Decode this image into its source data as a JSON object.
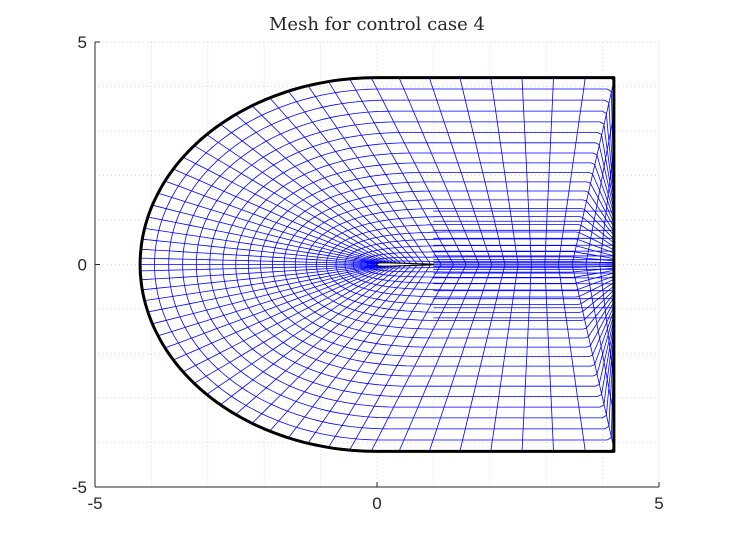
{
  "chart_data": {
    "type": "mesh",
    "title": "Mesh for control case 4",
    "xlabel": "",
    "ylabel": "",
    "xlim": [
      -5,
      5
    ],
    "ylim": [
      -5,
      5
    ],
    "xticks": [
      "-5",
      "0",
      "5"
    ],
    "yticks": [
      "-5",
      "0",
      "5"
    ],
    "grid": true,
    "grid_minor_step": 1,
    "boundary": {
      "semi_ellipse_a": 4.2,
      "semi_ellipse_b": 4.2,
      "center_x": 0,
      "right_edge_x": 4.2,
      "top_y": 4.2,
      "bottom_y": -4.2
    },
    "airfoil": {
      "x_start": 0,
      "x_end": 1
    },
    "mesh_color": "#0000ff",
    "boundary_color": "#000000"
  }
}
